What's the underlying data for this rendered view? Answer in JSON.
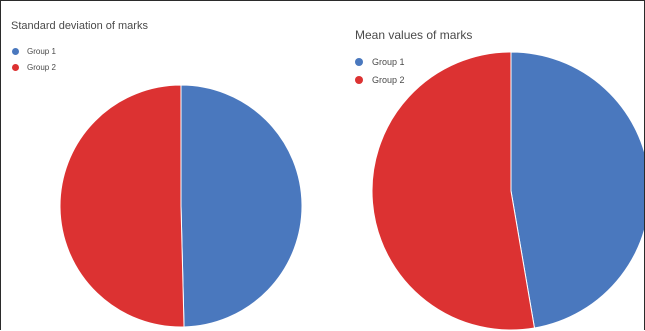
{
  "chart_data": [
    {
      "type": "pie",
      "title": "Standard deviation of marks",
      "legend_position": "top-left",
      "slices": [
        {
          "label": "Group 1",
          "value": 49.6,
          "color": "#4a78be"
        },
        {
          "label": "Group 2",
          "value": 50.4,
          "color": "#dc3232"
        }
      ]
    },
    {
      "type": "pie",
      "title": "Mean values of marks",
      "legend_position": "top-left",
      "slices": [
        {
          "label": "Group 1",
          "value": 47.3,
          "color": "#4a78be"
        },
        {
          "label": "Group 2",
          "value": 52.7,
          "color": "#dc3232"
        }
      ]
    }
  ]
}
